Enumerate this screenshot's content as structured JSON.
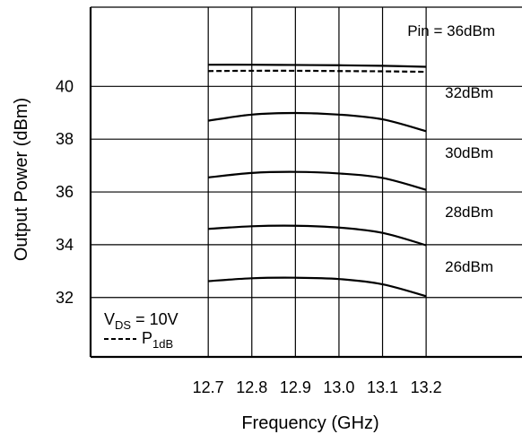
{
  "chart_data": {
    "type": "line",
    "title": "",
    "xlabel": "Frequency (GHz)",
    "ylabel": "Output Power (dBm)",
    "xlim": [
      12.43,
      13.42
    ],
    "ylim": [
      29.75,
      43.0
    ],
    "x_ticks": [
      12.7,
      12.8,
      12.9,
      13.0,
      13.1,
      13.2
    ],
    "x_tick_labels": [
      "12.7",
      "12.8",
      "12.9",
      "13.0",
      "13.1",
      "13.2"
    ],
    "y_ticks": [
      32,
      34,
      36,
      38,
      40
    ],
    "y_tick_labels": [
      "32",
      "34",
      "36",
      "38",
      "40"
    ],
    "grid": true,
    "series": [
      {
        "name": "Pin = 36dBm",
        "style": "solid",
        "x": [
          12.7,
          12.8,
          12.9,
          13.0,
          13.1,
          13.2
        ],
        "y": [
          40.82,
          40.82,
          40.81,
          40.8,
          40.78,
          40.74
        ]
      },
      {
        "name": "P1dB",
        "style": "dashed",
        "x": [
          12.7,
          12.8,
          12.9,
          13.0,
          13.1,
          13.2
        ],
        "y": [
          40.58,
          40.59,
          40.59,
          40.58,
          40.57,
          40.55
        ]
      },
      {
        "name": "32dBm",
        "style": "solid",
        "x": [
          12.7,
          12.8,
          12.9,
          13.0,
          13.1,
          13.2
        ],
        "y": [
          38.7,
          38.93,
          38.99,
          38.93,
          38.75,
          38.3
        ]
      },
      {
        "name": "30dBm",
        "style": "solid",
        "x": [
          12.7,
          12.8,
          12.9,
          13.0,
          13.1,
          13.2
        ],
        "y": [
          36.55,
          36.72,
          36.76,
          36.7,
          36.53,
          36.08
        ]
      },
      {
        "name": "28dBm",
        "style": "solid",
        "x": [
          12.7,
          12.8,
          12.9,
          13.0,
          13.1,
          13.2
        ],
        "y": [
          34.6,
          34.7,
          34.72,
          34.65,
          34.45,
          33.98
        ]
      },
      {
        "name": "26dBm",
        "style": "solid",
        "x": [
          12.7,
          12.8,
          12.9,
          13.0,
          13.1,
          13.2
        ],
        "y": [
          32.62,
          32.73,
          32.75,
          32.7,
          32.5,
          32.05
        ]
      }
    ],
    "legend": {
      "placement": "bottom-left",
      "condition_prefix": "V",
      "condition_sub": "DS",
      "condition_rest": " = 10V",
      "dashed_main": "P",
      "dashed_sub": "1dB"
    }
  }
}
